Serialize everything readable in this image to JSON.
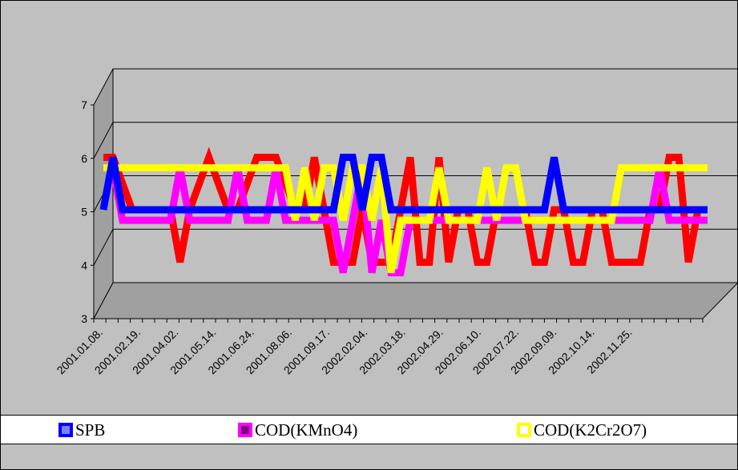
{
  "chart_data": {
    "type": "line",
    "title": "",
    "xlabel": "",
    "ylabel": "",
    "ylim": [
      3,
      7
    ],
    "yticks": [
      3,
      4,
      5,
      6,
      7
    ],
    "grid": true,
    "three_d": true,
    "legend_position": "bottom",
    "category_labels": [
      "2001.01.08.",
      "2001.02.19.",
      "2001.04.02.",
      "2001.05.14.",
      "2001.06.24.",
      "2001.08.06.",
      "2001.09.17.",
      "2002.02.04.",
      "2002.03.18.",
      "2002.04.29.",
      "2002.06.10.",
      "2002.07.22.",
      "2002.09.09.",
      "2002.10.14.",
      "2002.11.25."
    ],
    "series": [
      {
        "name": "",
        "color": "#ff0000",
        "values": [
          6.0,
          6.0,
          5.5,
          5.0,
          5.0,
          5.0,
          5.0,
          5.0,
          4.0,
          5.0,
          5.5,
          6.0,
          5.5,
          5.0,
          5.0,
          5.5,
          6.0,
          6.0,
          6.0,
          5.5,
          5.0,
          5.0,
          6.0,
          5.0,
          4.0,
          4.0,
          4.0,
          5.0,
          4.0,
          4.0,
          4.0,
          5.0,
          6.0,
          4.0,
          4.0,
          6.0,
          4.0,
          5.0,
          5.0,
          4.0,
          4.0,
          5.0,
          5.0,
          5.0,
          5.0,
          4.0,
          4.0,
          5.0,
          5.0,
          4.0,
          4.0,
          5.0,
          5.0,
          4.0,
          4.0,
          4.0,
          4.0,
          5.0,
          5.0,
          6.0,
          6.0,
          4.0,
          5.0,
          5.0
        ]
      },
      {
        "name": "SPB",
        "color": "#0000ff",
        "values": [
          5.0,
          6.0,
          5.0,
          5.0,
          5.0,
          5.0,
          5.0,
          5.0,
          5.0,
          5.0,
          5.0,
          5.0,
          5.0,
          5.0,
          5.0,
          5.0,
          5.0,
          5.0,
          5.0,
          5.0,
          5.0,
          5.0,
          5.0,
          5.0,
          5.0,
          6.0,
          6.0,
          5.0,
          6.0,
          6.0,
          5.0,
          5.0,
          5.0,
          5.0,
          5.0,
          5.0,
          5.0,
          5.0,
          5.0,
          5.0,
          5.0,
          5.0,
          5.0,
          5.0,
          5.0,
          5.0,
          5.0,
          6.0,
          5.0,
          5.0,
          5.0,
          5.0,
          5.0,
          5.0,
          5.0,
          5.0,
          5.0,
          5.0,
          5.0,
          5.0,
          5.0,
          5.0,
          5.0,
          5.0
        ]
      },
      {
        "name": "COD(KMnO4)",
        "color": "#ff00ff",
        "values": [
          5.8,
          5.8,
          4.8,
          4.8,
          4.8,
          4.8,
          4.8,
          4.8,
          5.8,
          4.8,
          4.8,
          4.8,
          4.8,
          4.8,
          5.8,
          4.8,
          4.8,
          4.8,
          5.8,
          4.8,
          4.8,
          4.8,
          4.8,
          4.8,
          4.8,
          3.8,
          4.8,
          5.8,
          3.8,
          4.8,
          3.8,
          3.8,
          4.8,
          4.8,
          4.8,
          4.8,
          4.8,
          4.8,
          4.8,
          4.8,
          4.8,
          4.8,
          4.8,
          4.8,
          4.8,
          4.8,
          4.8,
          4.8,
          4.8,
          4.8,
          4.8,
          4.8,
          4.8,
          4.8,
          4.8,
          4.8,
          4.8,
          4.8,
          5.8,
          4.8,
          4.8,
          4.8,
          4.8,
          4.8
        ]
      },
      {
        "name": "COD(K2Cr2O7)",
        "color": "#ffff00",
        "values": [
          5.8,
          5.8,
          5.8,
          5.8,
          5.8,
          5.8,
          5.8,
          5.8,
          5.8,
          5.8,
          5.8,
          5.8,
          5.8,
          5.8,
          5.8,
          5.8,
          5.8,
          5.8,
          5.8,
          5.8,
          4.8,
          5.8,
          4.8,
          5.8,
          5.8,
          4.8,
          5.8,
          5.8,
          4.8,
          5.8,
          3.8,
          4.8,
          4.8,
          4.8,
          4.8,
          5.8,
          4.8,
          4.8,
          4.8,
          4.8,
          5.8,
          4.8,
          5.8,
          5.8,
          4.8,
          4.8,
          4.8,
          4.8,
          4.8,
          4.8,
          4.8,
          4.8,
          4.8,
          4.8,
          5.8,
          5.8,
          5.8,
          5.8,
          5.8,
          5.8,
          5.8,
          5.8,
          5.8,
          5.8
        ]
      }
    ]
  }
}
